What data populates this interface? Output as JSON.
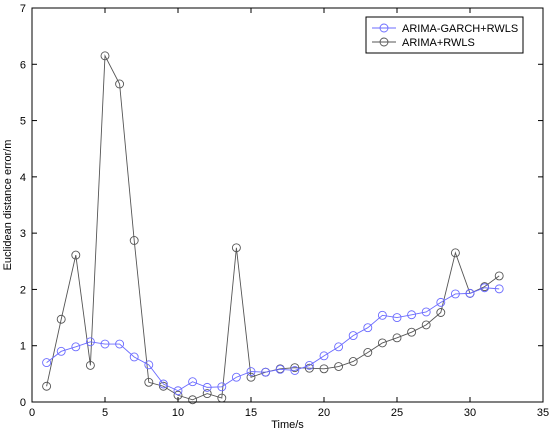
{
  "chart_data": {
    "type": "line",
    "xlabel": "Time/s",
    "ylabel": "Euclidean distance error/m",
    "xlim": [
      0,
      35
    ],
    "ylim": [
      0,
      7
    ],
    "xticks": [
      0,
      5,
      10,
      15,
      20,
      25,
      30,
      35
    ],
    "yticks": [
      0,
      1,
      2,
      3,
      4,
      5,
      6,
      7
    ],
    "grid": false,
    "legend_position": "top-right",
    "x": [
      1,
      2,
      3,
      4,
      5,
      6,
      7,
      8,
      9,
      10,
      11,
      12,
      13,
      14,
      15,
      16,
      17,
      18,
      19,
      20,
      21,
      22,
      23,
      24,
      25,
      26,
      27,
      28,
      29,
      30,
      31,
      32
    ],
    "series": [
      {
        "name": "ARIMA-GARCH+RWLS",
        "color": "#6b6bff",
        "marker": "circle",
        "values": [
          0.7,
          0.9,
          0.98,
          1.07,
          1.03,
          1.03,
          0.8,
          0.66,
          0.32,
          0.2,
          0.36,
          0.26,
          0.27,
          0.44,
          0.54,
          0.53,
          0.58,
          0.56,
          0.65,
          0.82,
          0.98,
          1.18,
          1.32,
          1.54,
          1.5,
          1.55,
          1.6,
          1.77,
          1.92,
          1.93,
          2.03,
          2.01
        ]
      },
      {
        "name": "ARIMA+RWLS",
        "color": "#555555",
        "marker": "circle",
        "values": [
          0.28,
          1.47,
          2.61,
          0.65,
          6.15,
          5.65,
          2.87,
          0.35,
          0.28,
          0.12,
          0.04,
          0.15,
          0.07,
          2.74,
          0.44,
          0.53,
          0.59,
          0.61,
          0.6,
          0.59,
          0.63,
          0.72,
          0.88,
          1.05,
          1.14,
          1.24,
          1.37,
          1.59,
          2.65,
          1.93,
          2.05,
          2.24
        ]
      }
    ]
  }
}
